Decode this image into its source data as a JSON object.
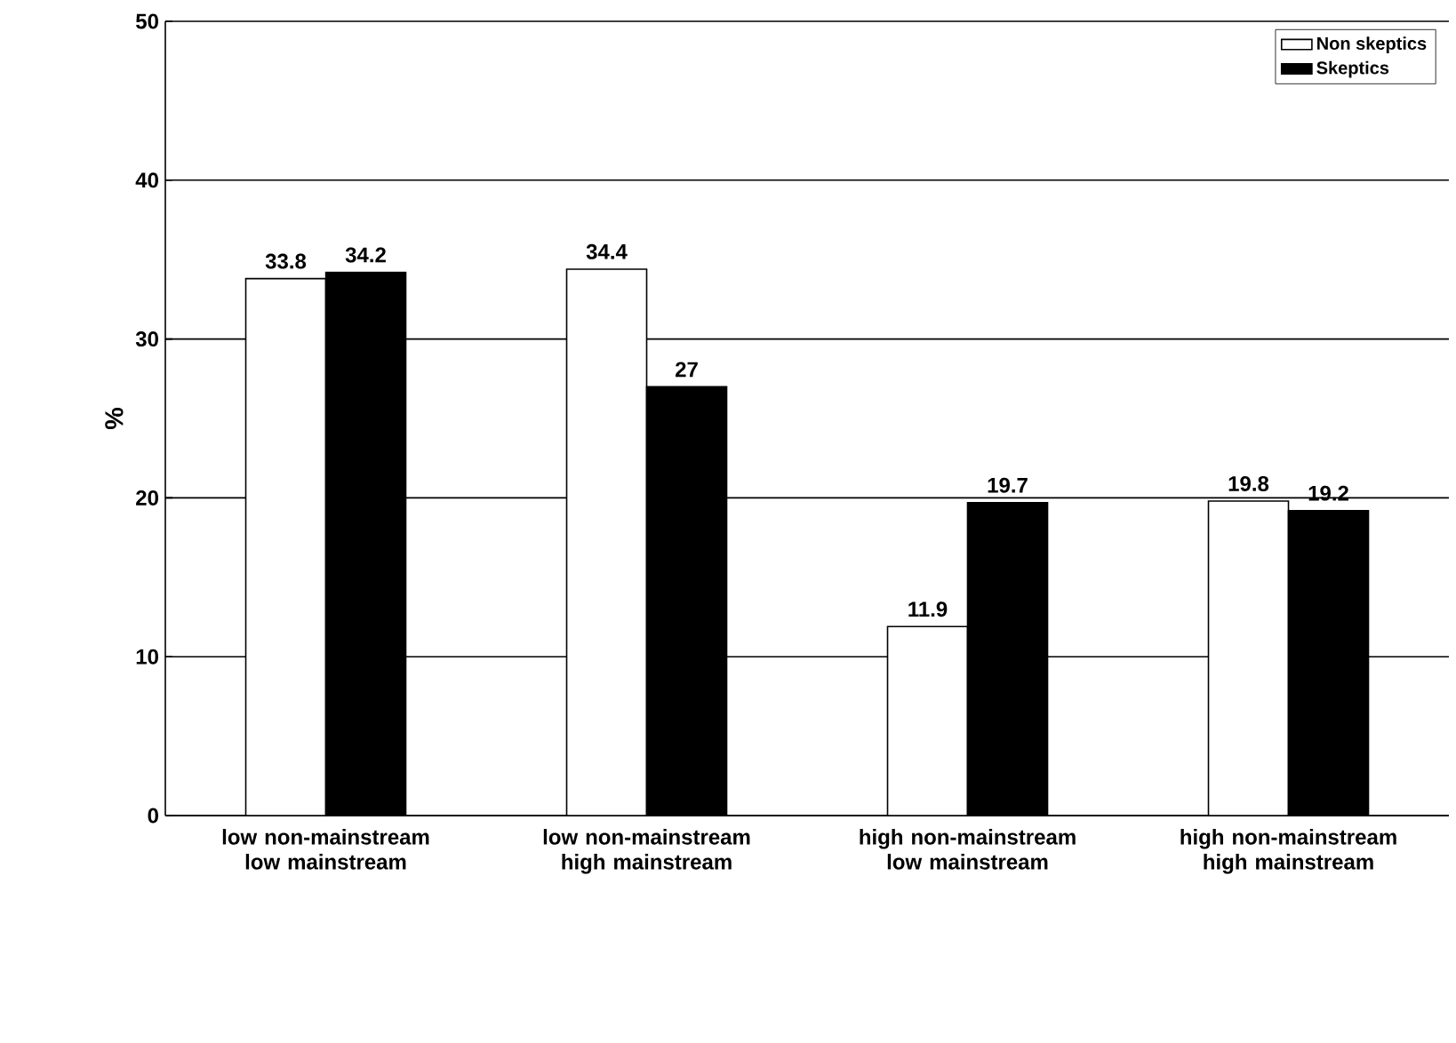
{
  "chart_data": {
    "type": "bar",
    "ylabel": "%",
    "ylim": [
      0,
      50
    ],
    "yticks": [
      0,
      10,
      20,
      30,
      40,
      50
    ],
    "grid": "y",
    "legend": "top right",
    "data_labels": true,
    "categories": [
      "low non-mainstream low mainstream",
      "low non-mainstream high mainstream",
      "high non-mainstream low mainstream",
      "high non-mainstream high mainstream"
    ],
    "series": [
      {
        "name": "Non skeptics",
        "color": "#ffffff",
        "values": [
          33.8,
          34.4,
          11.9,
          19.8
        ]
      },
      {
        "name": "Skeptics",
        "color": "#000000",
        "values": [
          34.2,
          27,
          19.7,
          19.2
        ]
      }
    ]
  }
}
